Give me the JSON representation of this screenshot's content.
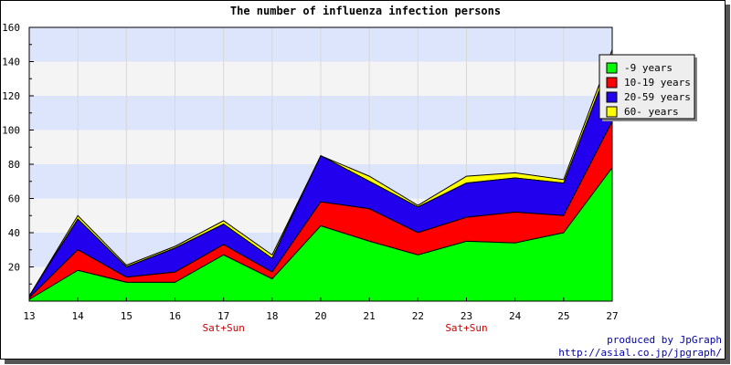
{
  "chart_data": {
    "type": "area",
    "stacked": true,
    "title": "The number of influenza infection persons",
    "x": [
      "13",
      "14",
      "15",
      "16",
      "17",
      "18",
      "20",
      "21",
      "22",
      "23",
      "24",
      "25",
      "27"
    ],
    "xlabel": "",
    "ylabel": "",
    "ylim": [
      0,
      160
    ],
    "yticks": [
      20,
      40,
      60,
      80,
      100,
      120,
      140,
      160
    ],
    "x_sublabels": [
      {
        "x": "17",
        "text": "Sat+Sun"
      },
      {
        "x": "23",
        "text": "Sat+Sun"
      }
    ],
    "grid": true,
    "legend_position": "top-right",
    "series": [
      {
        "name": "-9 years",
        "color": "#00ff00",
        "values": [
          1,
          18,
          11,
          11,
          27,
          13,
          44,
          35,
          27,
          35,
          34,
          40,
          78
        ]
      },
      {
        "name": "10-19 years",
        "color": "#ff0000",
        "values": [
          1,
          12,
          3,
          6,
          6,
          4,
          14,
          19,
          13,
          14,
          18,
          10,
          27
        ]
      },
      {
        "name": "20-59 years",
        "color": "#2200ee",
        "values": [
          1,
          18,
          6,
          14,
          12,
          8,
          27,
          16,
          15,
          20,
          20,
          19,
          38
        ]
      },
      {
        "name": "60- years",
        "color": "#ffff00",
        "values": [
          0,
          2,
          1,
          1,
          2,
          2,
          0,
          3,
          1,
          4,
          3,
          2,
          4
        ]
      }
    ]
  },
  "credits": {
    "line1": "produced by JpGraph",
    "line2": "http://asial.co.jp/jpgraph/"
  }
}
